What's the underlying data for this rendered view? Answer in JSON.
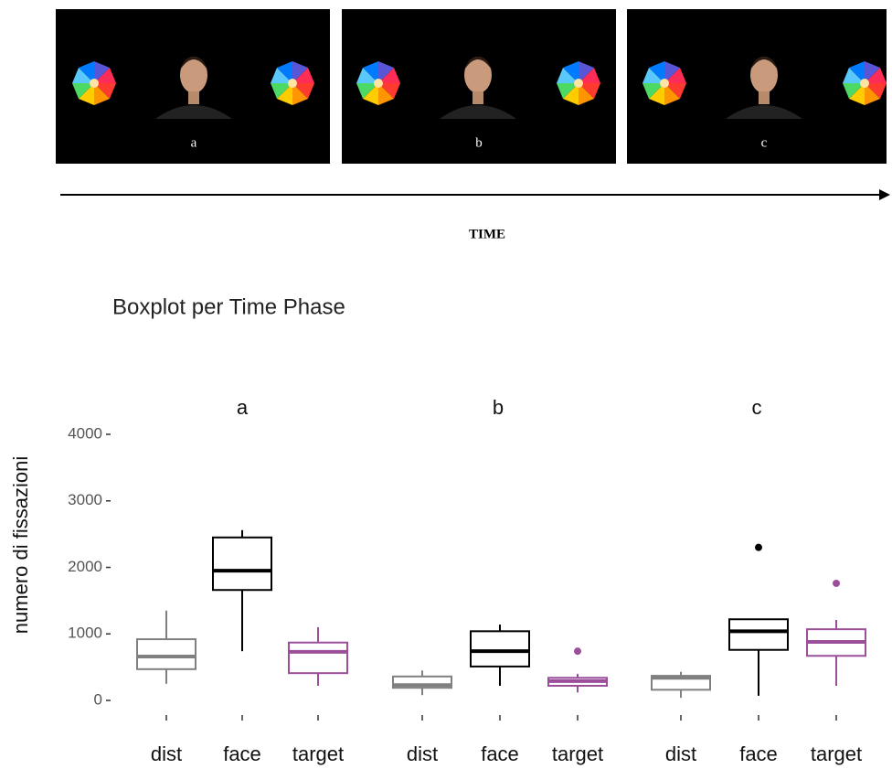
{
  "stimuli": {
    "panels": [
      {
        "label": "a"
      },
      {
        "label": "b"
      },
      {
        "label": "c"
      }
    ],
    "axis_label": "TIME"
  },
  "chart_data": {
    "type": "box",
    "title": "Boxplot per Time Phase",
    "ylabel": "numero di fissazioni",
    "ylim": [
      0,
      4000
    ],
    "yticks": [
      0,
      1000,
      2000,
      3000,
      4000
    ],
    "colors": [
      "#808080",
      "#000000",
      "#9b4f9b"
    ],
    "panels": [
      {
        "label": "a",
        "categories": [
          "dist",
          "face",
          "target"
        ],
        "boxes": [
          {
            "whislo": 250,
            "q1": 470,
            "med": 660,
            "q3": 920,
            "whishi": 1350,
            "outliers": []
          },
          {
            "whislo": 740,
            "q1": 1660,
            "med": 1950,
            "q3": 2450,
            "whishi": 2560,
            "outliers": []
          },
          {
            "whislo": 220,
            "q1": 410,
            "med": 730,
            "q3": 870,
            "whishi": 1100,
            "outliers": []
          }
        ]
      },
      {
        "label": "b",
        "categories": [
          "dist",
          "face",
          "target"
        ],
        "boxes": [
          {
            "whislo": 80,
            "q1": 190,
            "med": 230,
            "q3": 360,
            "whishi": 450,
            "outliers": []
          },
          {
            "whislo": 220,
            "q1": 510,
            "med": 740,
            "q3": 1040,
            "whishi": 1140,
            "outliers": []
          },
          {
            "whislo": 120,
            "q1": 220,
            "med": 290,
            "q3": 340,
            "whishi": 400,
            "outliers": [
              740
            ]
          }
        ]
      },
      {
        "label": "c",
        "categories": [
          "dist",
          "face",
          "target"
        ],
        "boxes": [
          {
            "whislo": 40,
            "q1": 160,
            "med": 340,
            "q3": 370,
            "whishi": 430,
            "outliers": []
          },
          {
            "whislo": 70,
            "q1": 760,
            "med": 1040,
            "q3": 1220,
            "whishi": 1220,
            "outliers": [
              2300
            ]
          },
          {
            "whislo": 220,
            "q1": 670,
            "med": 880,
            "q3": 1070,
            "whishi": 1210,
            "outliers": [
              1760
            ]
          }
        ]
      }
    ]
  }
}
